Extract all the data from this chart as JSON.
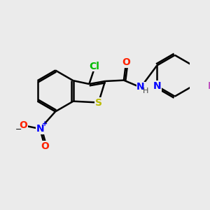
{
  "background_color": "#ebebeb",
  "bond_color": "#000000",
  "bond_width": 1.8,
  "figsize": [
    3.0,
    3.0
  ],
  "dpi": 100,
  "atoms": {
    "Cl": {
      "color": "#00bb00",
      "fontsize": 10,
      "fontweight": "bold"
    },
    "S": {
      "color": "#bbbb00",
      "fontsize": 10,
      "fontweight": "bold"
    },
    "O": {
      "color": "#ff2200",
      "fontsize": 10,
      "fontweight": "bold"
    },
    "N": {
      "color": "#0000ff",
      "fontsize": 10,
      "fontweight": "bold"
    },
    "I": {
      "color": "#bb44bb",
      "fontsize": 10,
      "fontweight": "bold"
    },
    "plus": {
      "color": "#0000ff",
      "fontsize": 7
    },
    "minus": {
      "color": "#000000",
      "fontsize": 9
    }
  }
}
